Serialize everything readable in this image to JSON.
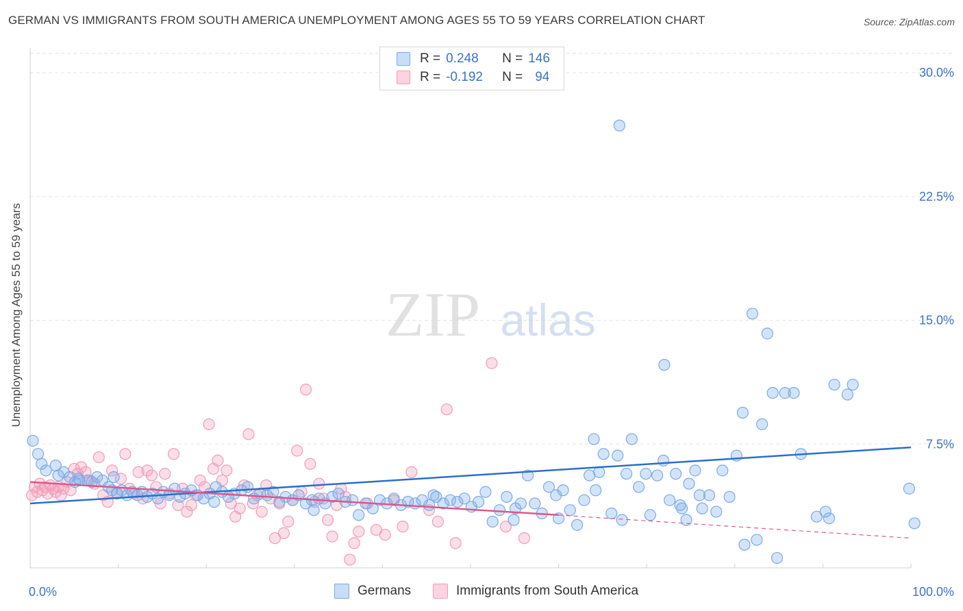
{
  "title": "GERMAN VS IMMIGRANTS FROM SOUTH AMERICA UNEMPLOYMENT AMONG AGES 55 TO 59 YEARS CORRELATION CHART",
  "source": "Source: ZipAtlas.com",
  "watermark": {
    "zip": "ZIP",
    "atlas": "atlas"
  },
  "legend": {
    "rows": [
      {
        "r_label": "R =",
        "r_value": "0.248",
        "n_label": "N =",
        "n_value": "146",
        "color": "#7aaae8"
      },
      {
        "r_label": "R =",
        "r_value": "-0.192",
        "n_label": "N =",
        "n_value": "94",
        "color": "#f29bb6"
      }
    ]
  },
  "bottom_legend": [
    {
      "label": "Germans",
      "color": "#7aaae8"
    },
    {
      "label": "Immigrants from South America",
      "color": "#f29bb6"
    }
  ],
  "chart_data": {
    "type": "scatter",
    "title": "GERMAN VS IMMIGRANTS FROM SOUTH AMERICA UNEMPLOYMENT AMONG AGES 55 TO 59 YEARS CORRELATION CHART",
    "xlabel": "",
    "ylabel": "Unemployment Among Ages 55 to 59 years",
    "xlim": [
      0,
      100
    ],
    "ylim": [
      0,
      31.5
    ],
    "x_tick_labels": [
      "0.0%",
      "100.0%"
    ],
    "y_ticks": [
      7.5,
      15.0,
      22.5,
      30.0
    ],
    "y_tick_labels": [
      "7.5%",
      "15.0%",
      "22.5%",
      "30.0%"
    ],
    "series": [
      {
        "name": "Germans",
        "color": "#7aaae8",
        "line_color": "#2a6fcb",
        "trend": {
          "x0": 0,
          "y0": 3.9,
          "x1": 100,
          "y1": 7.3
        },
        "points": [
          [
            0.3,
            7.7
          ],
          [
            0.9,
            6.9
          ],
          [
            1.3,
            6.3
          ],
          [
            1.8,
            5.9
          ],
          [
            2.9,
            6.2
          ],
          [
            3.2,
            5.6
          ],
          [
            3.8,
            5.8
          ],
          [
            4.5,
            5.5
          ],
          [
            5.1,
            5.2
          ],
          [
            5.6,
            5.3
          ],
          [
            6.5,
            5.3
          ],
          [
            7.0,
            5.2
          ],
          [
            7.6,
            5.5
          ],
          [
            8.2,
            5.3
          ],
          [
            8.9,
            4.9
          ],
          [
            9.3,
            4.7
          ],
          [
            9.9,
            4.5
          ],
          [
            10.4,
            4.7
          ],
          [
            11.0,
            4.4
          ],
          [
            11.6,
            4.6
          ],
          [
            12.2,
            4.4
          ],
          [
            12.7,
            4.6
          ],
          [
            13.3,
            4.3
          ],
          [
            13.9,
            4.5
          ],
          [
            14.5,
            4.2
          ],
          [
            15.1,
            4.6
          ],
          [
            15.8,
            4.4
          ],
          [
            16.4,
            4.8
          ],
          [
            17.0,
            4.3
          ],
          [
            17.6,
            4.5
          ],
          [
            18.3,
            4.7
          ],
          [
            19.0,
            4.4
          ],
          [
            19.7,
            4.2
          ],
          [
            20.4,
            4.5
          ],
          [
            21.1,
            4.9
          ],
          [
            21.8,
            4.6
          ],
          [
            22.5,
            4.3
          ],
          [
            23.2,
            4.5
          ],
          [
            24.0,
            4.7
          ],
          [
            24.7,
            4.9
          ],
          [
            25.4,
            4.2
          ],
          [
            26.1,
            4.5
          ],
          [
            26.9,
            4.4
          ],
          [
            27.6,
            4.6
          ],
          [
            28.3,
            4.0
          ],
          [
            29.0,
            4.3
          ],
          [
            29.8,
            4.1
          ],
          [
            30.5,
            4.4
          ],
          [
            31.3,
            3.9
          ],
          [
            32.0,
            4.1
          ],
          [
            32.8,
            4.2
          ],
          [
            33.5,
            3.9
          ],
          [
            34.3,
            4.3
          ],
          [
            35.0,
            4.5
          ],
          [
            35.8,
            4.0
          ],
          [
            36.6,
            4.1
          ],
          [
            37.3,
            3.2
          ],
          [
            38.1,
            3.9
          ],
          [
            38.9,
            3.6
          ],
          [
            39.7,
            4.1
          ],
          [
            40.5,
            3.9
          ],
          [
            41.3,
            4.2
          ],
          [
            42.1,
            3.8
          ],
          [
            42.9,
            4.0
          ],
          [
            43.7,
            3.9
          ],
          [
            44.5,
            4.1
          ],
          [
            45.3,
            3.8
          ],
          [
            46.1,
            4.3
          ],
          [
            46.9,
            3.9
          ],
          [
            47.7,
            4.1
          ],
          [
            48.5,
            4.0
          ],
          [
            49.3,
            4.2
          ],
          [
            50.1,
            3.7
          ],
          [
            50.9,
            4.0
          ],
          [
            51.7,
            4.6
          ],
          [
            52.5,
            2.8
          ],
          [
            53.3,
            3.5
          ],
          [
            54.1,
            4.3
          ],
          [
            54.9,
            2.9
          ],
          [
            55.7,
            3.9
          ],
          [
            56.5,
            5.6
          ],
          [
            57.3,
            3.9
          ],
          [
            58.1,
            3.3
          ],
          [
            58.9,
            4.9
          ],
          [
            59.7,
            4.4
          ],
          [
            60.5,
            4.7
          ],
          [
            61.3,
            3.5
          ],
          [
            62.1,
            2.6
          ],
          [
            62.9,
            4.1
          ],
          [
            63.5,
            5.6
          ],
          [
            64.0,
            7.8
          ],
          [
            64.6,
            5.8
          ],
          [
            65.1,
            6.9
          ],
          [
            66.0,
            3.3
          ],
          [
            66.7,
            6.8
          ],
          [
            67.2,
            2.9
          ],
          [
            67.7,
            5.7
          ],
          [
            68.3,
            7.8
          ],
          [
            69.1,
            4.9
          ],
          [
            69.9,
            5.7
          ],
          [
            70.4,
            3.2
          ],
          [
            71.2,
            5.6
          ],
          [
            71.9,
            6.5
          ],
          [
            72.6,
            4.1
          ],
          [
            73.3,
            5.7
          ],
          [
            74.0,
            3.6
          ],
          [
            74.8,
            5.1
          ],
          [
            75.5,
            5.9
          ],
          [
            76.3,
            3.6
          ],
          [
            77.1,
            4.4
          ],
          [
            77.9,
            3.4
          ],
          [
            78.6,
            5.9
          ],
          [
            79.4,
            4.3
          ],
          [
            80.2,
            6.8
          ],
          [
            80.9,
            9.4
          ],
          [
            81.1,
            1.4
          ],
          [
            82.0,
            15.4
          ],
          [
            82.5,
            1.7
          ],
          [
            83.1,
            8.7
          ],
          [
            83.7,
            14.2
          ],
          [
            84.3,
            10.6
          ],
          [
            84.8,
            0.6
          ],
          [
            85.7,
            10.6
          ],
          [
            86.7,
            10.6
          ],
          [
            87.5,
            6.9
          ],
          [
            89.3,
            3.1
          ],
          [
            90.3,
            3.4
          ],
          [
            90.7,
            3.0
          ],
          [
            91.3,
            11.1
          ],
          [
            92.8,
            10.5
          ],
          [
            93.4,
            11.1
          ],
          [
            99.8,
            4.8
          ],
          [
            100.4,
            2.7
          ],
          [
            72.0,
            12.3
          ],
          [
            66.9,
            26.8
          ],
          [
            5.5,
            5.4
          ],
          [
            9.5,
            5.5
          ],
          [
            20.9,
            4.0
          ],
          [
            32.2,
            3.5
          ],
          [
            45.8,
            4.4
          ],
          [
            55.1,
            3.6
          ],
          [
            60.0,
            3.0
          ],
          [
            64.2,
            4.7
          ],
          [
            73.8,
            3.8
          ],
          [
            74.5,
            2.9
          ],
          [
            76.0,
            4.4
          ]
        ]
      },
      {
        "name": "Immigrants from South America",
        "color": "#f29bb6",
        "line_color": "#e0558a",
        "trend": {
          "x0": 0,
          "y0": 5.2,
          "x1": 60,
          "y1": 3.2,
          "dash_x1": 100,
          "dash_y1": 1.8
        },
        "points": [
          [
            0.2,
            4.4
          ],
          [
            0.5,
            4.9
          ],
          [
            0.8,
            4.6
          ],
          [
            1.1,
            5.1
          ],
          [
            1.4,
            4.7
          ],
          [
            1.7,
            4.9
          ],
          [
            2.0,
            4.5
          ],
          [
            2.3,
            5.0
          ],
          [
            2.6,
            4.8
          ],
          [
            2.9,
            4.6
          ],
          [
            3.2,
            4.9
          ],
          [
            3.5,
            4.4
          ],
          [
            3.8,
            4.8
          ],
          [
            4.2,
            5.2
          ],
          [
            4.6,
            4.7
          ],
          [
            5.0,
            6.0
          ],
          [
            5.4,
            5.7
          ],
          [
            5.8,
            6.1
          ],
          [
            6.3,
            5.8
          ],
          [
            6.8,
            5.3
          ],
          [
            7.3,
            5.1
          ],
          [
            7.8,
            6.7
          ],
          [
            8.3,
            4.4
          ],
          [
            8.8,
            4.0
          ],
          [
            9.3,
            5.9
          ],
          [
            9.8,
            4.5
          ],
          [
            10.3,
            5.4
          ],
          [
            10.8,
            6.9
          ],
          [
            11.3,
            4.8
          ],
          [
            11.8,
            4.5
          ],
          [
            12.3,
            5.8
          ],
          [
            12.8,
            4.2
          ],
          [
            13.3,
            5.9
          ],
          [
            13.8,
            5.6
          ],
          [
            14.3,
            4.9
          ],
          [
            14.8,
            3.9
          ],
          [
            15.3,
            5.7
          ],
          [
            15.8,
            4.5
          ],
          [
            16.3,
            6.9
          ],
          [
            16.8,
            3.8
          ],
          [
            17.3,
            4.8
          ],
          [
            17.8,
            3.4
          ],
          [
            18.3,
            3.8
          ],
          [
            18.8,
            4.4
          ],
          [
            19.3,
            5.3
          ],
          [
            19.8,
            4.9
          ],
          [
            20.3,
            8.7
          ],
          [
            20.8,
            6.0
          ],
          [
            21.3,
            6.5
          ],
          [
            21.8,
            5.3
          ],
          [
            22.3,
            5.9
          ],
          [
            22.8,
            3.9
          ],
          [
            23.3,
            3.1
          ],
          [
            23.8,
            3.6
          ],
          [
            24.3,
            5.0
          ],
          [
            24.8,
            8.1
          ],
          [
            25.3,
            3.9
          ],
          [
            25.8,
            4.4
          ],
          [
            26.3,
            3.4
          ],
          [
            26.8,
            5.0
          ],
          [
            27.3,
            4.2
          ],
          [
            27.8,
            1.8
          ],
          [
            28.3,
            3.9
          ],
          [
            28.8,
            2.1
          ],
          [
            29.3,
            2.8
          ],
          [
            29.8,
            4.1
          ],
          [
            30.3,
            7.1
          ],
          [
            30.8,
            4.6
          ],
          [
            31.3,
            10.8
          ],
          [
            31.8,
            6.3
          ],
          [
            32.3,
            4.0
          ],
          [
            32.8,
            5.1
          ],
          [
            33.3,
            4.2
          ],
          [
            33.8,
            2.9
          ],
          [
            34.3,
            1.9
          ],
          [
            34.8,
            3.8
          ],
          [
            35.3,
            4.8
          ],
          [
            35.8,
            4.3
          ],
          [
            36.3,
            0.5
          ],
          [
            36.8,
            1.5
          ],
          [
            37.3,
            2.2
          ],
          [
            38.3,
            3.9
          ],
          [
            39.3,
            2.3
          ],
          [
            40.3,
            2.0
          ],
          [
            41.3,
            4.1
          ],
          [
            42.3,
            2.5
          ],
          [
            43.3,
            5.8
          ],
          [
            45.3,
            3.5
          ],
          [
            46.3,
            2.8
          ],
          [
            47.3,
            9.6
          ],
          [
            48.3,
            1.5
          ],
          [
            52.4,
            12.4
          ],
          [
            54.0,
            2.5
          ],
          [
            56.1,
            1.8
          ]
        ]
      }
    ]
  }
}
